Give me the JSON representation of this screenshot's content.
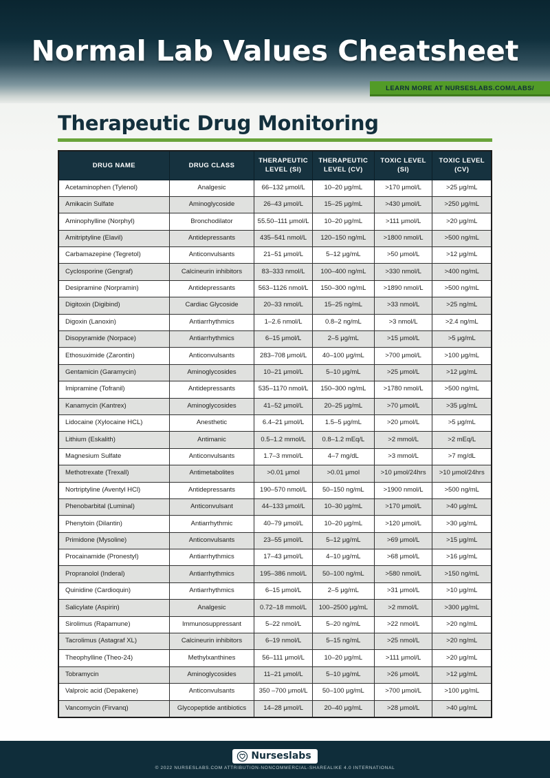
{
  "header": {
    "title": "Normal Lab Values Cheatsheet",
    "ribbon": "LEARN MORE AT NURSESLABS.COM/LABS/"
  },
  "section": {
    "title": "Therapeutic Drug Monitoring"
  },
  "colors": {
    "header_dark": "#0d2833",
    "table_header_navy": "#16323f",
    "ribbon_green": "#529b27",
    "rule_green": "#69a43b",
    "row_alt_gray": "#e0e1df",
    "footer_navy": "#0f2d3a"
  },
  "table": {
    "columns": [
      "DRUG NAME",
      "DRUG CLASS",
      "THERAPEUTIC LEVEL (SI)",
      "THERAPEUTIC LEVEL (CV)",
      "TOXIC LEVEL (SI)",
      "TOXIC LEVEL (CV)"
    ],
    "rows": [
      [
        "Acetaminophen (Tylenol)",
        "Analgesic",
        "66–132 μmol/L",
        "10–20 μg/mL",
        ">170 μmol/L",
        ">25 μg/mL"
      ],
      [
        "Amikacin Sulfate",
        "Aminoglycoside",
        "26–43 μmol/L",
        "15–25 μg/mL",
        ">430 μmol/L",
        ">250 μg/mL"
      ],
      [
        "Aminophylline (Norphyl)",
        "Bronchodilator",
        "55.50–111 μmol/L",
        "10–20 μg/mL",
        ">111 μmol/L",
        ">20 μg/mL"
      ],
      [
        "Amitriptyline (Elavil)",
        "Antidepressants",
        "435–541 nmol/L",
        "120–150 ng/mL",
        ">1800 nmol/L",
        ">500 ng/mL"
      ],
      [
        "Carbamazepine (Tegretol)",
        "Anticonvulsants",
        "21–51 μmol/L",
        "5–12 μg/mL",
        ">50 μmol/L",
        ">12 μg/mL"
      ],
      [
        "Cyclosporine (Gengraf)",
        "Calcineurin inhibitors",
        "83–333 nmol/L",
        "100–400 ng/mL",
        ">330 nmol/L",
        ">400 ng/mL"
      ],
      [
        "Desipramine (Norpramin)",
        "Antidepressants",
        "563–1126 nmol/L",
        "150–300 ng/mL",
        ">1890 nmol/L",
        ">500 ng/mL"
      ],
      [
        "Digitoxin (Digibind)",
        "Cardiac Glycoside",
        "20–33 nmol/L",
        "15–25 ng/mL",
        ">33 nmol/L",
        ">25 ng/mL"
      ],
      [
        "Digoxin (Lanoxin)",
        "Antiarrhythmics",
        "1–2.6 nmol/L",
        "0.8–2 ng/mL",
        ">3 nmol/L",
        ">2.4 ng/mL"
      ],
      [
        "Disopyramide (Norpace)",
        "Antiarrhythmics",
        "6–15 μmol/L",
        "2–5 μg/mL",
        ">15 μmol/L",
        ">5 μg/mL"
      ],
      [
        "Ethosuximide (Zarontin)",
        "Anticonvulsants",
        "283–708 μmol/L",
        "40–100 μg/mL",
        ">700 μmol/L",
        ">100 μg/mL"
      ],
      [
        "Gentamicin (Garamycin)",
        "Aminoglycosides",
        "10–21 μmol/L",
        "5–10 μg/mL",
        ">25 μmol/L",
        ">12 μg/mL"
      ],
      [
        "Imipramine (Tofranil)",
        "Antidepressants",
        "535–1170 nmol/L",
        "150–300 ng/mL",
        ">1780 nmol/L",
        ">500 ng/mL"
      ],
      [
        "Kanamycin (Kantrex)",
        "Aminoglycosides",
        "41–52 μmol/L",
        "20–25 μg/mL",
        ">70 μmol/L",
        ">35 μg/mL"
      ],
      [
        "Lidocaine (Xylocaine HCL)",
        "Anesthetic",
        "6.4–21 μmol/L",
        "1.5–5 μg/mL",
        ">20 μmol/L",
        ">5 μg/mL"
      ],
      [
        "Lithium (Eskalith)",
        "Antimanic",
        "0.5–1.2 mmol/L",
        "0.8–1.2 mEq/L",
        ">2 mmol/L",
        ">2 mEq/L"
      ],
      [
        "Magnesium Sulfate",
        "Anticonvulsants",
        "1.7–3 mmol/L",
        "4–7 mg/dL",
        ">3 mmol/L",
        ">7 mg/dL"
      ],
      [
        "Methotrexate (Trexall)",
        "Antimetabolites",
        ">0.01 μmol",
        ">0.01 μmol",
        ">10 μmol/24hrs",
        ">10 μmol/24hrs"
      ],
      [
        "Nortriptyline (Aventyl HCl)",
        "Antidepressants",
        "190–570 nmol/L",
        "50–150 ng/mL",
        ">1900 nmol/L",
        ">500 ng/mL"
      ],
      [
        "Phenobarbital (Luminal)",
        "Anticonvulsant",
        "44–133 μmol/L",
        "10–30 μg/mL",
        ">170 μmol/L",
        ">40 μg/mL"
      ],
      [
        "Phenytoin (Dilantin)",
        "Antiarrhythmic",
        "40–79 μmol/L",
        "10–20 μg/mL",
        ">120 μmol/L",
        ">30 μg/mL"
      ],
      [
        "Primidone (Mysoline)",
        "Anticonvulsants",
        "23–55 μmol/L",
        "5–12 μg/mL",
        ">69 μmol/L",
        ">15 μg/mL"
      ],
      [
        "Procainamide (Pronestyl)",
        "Antiarrhythmics",
        "17–43 μmol/L",
        "4–10 μg/mL",
        ">68 μmol/L",
        ">16 μg/mL"
      ],
      [
        "Propranolol (Inderal)",
        "Antiarrhythmics",
        "195–386 nmol/L",
        "50–100 ng/mL",
        ">580 nmol/L",
        ">150 ng/mL"
      ],
      [
        "Quinidine (Cardioquin)",
        "Antiarrhythmics",
        "6–15 μmol/L",
        "2–5 μg/mL",
        ">31 μmol/L",
        ">10 μg/mL"
      ],
      [
        "Salicylate (Aspirin)",
        "Analgesic",
        "0.72–18 mmol/L",
        "100–2500 μg/mL",
        ">2 mmol/L",
        ">300 μg/mL"
      ],
      [
        "Sirolimus (Rapamune)",
        "Immunosuppressant",
        "5–22 nmol/L",
        "5–20 ng/mL",
        ">22 nmol/L",
        ">20 ng/mL"
      ],
      [
        "Tacrolimus (Astagraf XL)",
        "Calcineurin inhibitors",
        "6–19 nmol/L",
        "5–15 ng/mL",
        ">25 nmol/L",
        ">20 ng/mL"
      ],
      [
        "Theophylline (Theo-24)",
        "Methylxanthines",
        "56–111 μmol/L",
        "10–20 μg/mL",
        ">111 μmol/L",
        ">20 μg/mL"
      ],
      [
        "Tobramycin",
        "Aminoglycosides",
        "11–21 μmol/L",
        "5–10 μg/mL",
        ">26 μmol/L",
        ">12 μg/mL"
      ],
      [
        "Valproic acid (Depakene)",
        "Anticonvulsants",
        "350 –700 μmol/L",
        "50–100 μg/mL",
        ">700 μmol/L",
        ">100 μg/mL"
      ],
      [
        "Vancomycin (Firvanq)",
        "Glycopeptide antibiotics",
        "14–28 μmol/L",
        "20–40 μg/mL",
        ">28 μmol/L",
        ">40 μg/mL"
      ]
    ]
  },
  "footer": {
    "logo_text": "Nurseslabs",
    "copyright": "© 2022 NURSESLABS.COM ATTRIBUTION-NONCOMMERCIAL-SHAREALIKE 4.0 INTERNATIONAL"
  }
}
